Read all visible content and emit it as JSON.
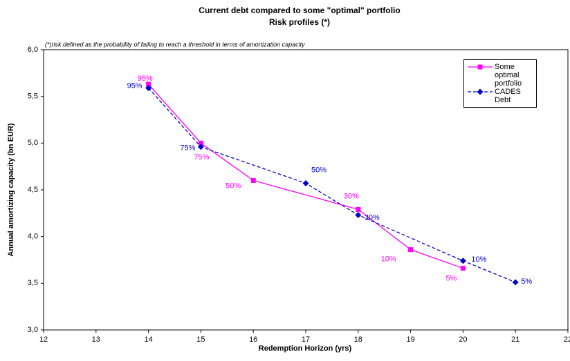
{
  "chart_data": {
    "type": "line",
    "title": "Current debt compared to some \"optimal\" portfolio",
    "subtitle": "Risk profiles (*)",
    "annotation": "(*)risk defined as the probability of failing to reach a threshold in terms of amortization capacity",
    "x_label": "Redemption Horizon (yrs)",
    "y_label": "Annual amortizing capacity (bn EUR)",
    "xlim": [
      12,
      22
    ],
    "xticks": [
      12,
      13,
      14,
      15,
      16,
      17,
      18,
      19,
      20,
      21,
      22
    ],
    "ylim": [
      3,
      6
    ],
    "yticks": [
      {
        "value": 3,
        "label": "3,0"
      },
      {
        "value": 3.5,
        "label": "3,5"
      },
      {
        "value": 4,
        "label": "4,0"
      },
      {
        "value": 4.5,
        "label": "4,5"
      },
      {
        "value": 5,
        "label": "5,0"
      },
      {
        "value": 5.5,
        "label": "5,5"
      },
      {
        "value": 6,
        "label": "6,0"
      }
    ],
    "grid": false,
    "legend": "top-right",
    "series": [
      {
        "name": "Some optimal portfolio",
        "color": "#ff00ff",
        "marker": "square",
        "dash": false,
        "x": [
          14,
          15,
          16,
          18,
          19,
          20
        ],
        "values": [
          5.63,
          5.0,
          4.6,
          4.29,
          3.86,
          3.66
        ],
        "point_labels": [
          "95%",
          "75%",
          "50%",
          "30%",
          "10%",
          "5%"
        ]
      },
      {
        "name": "CADES Debt",
        "color": "#0000cc",
        "marker": "diamond",
        "dash": true,
        "x": [
          14,
          15,
          17,
          18,
          20,
          21
        ],
        "values": [
          5.59,
          4.96,
          4.57,
          4.23,
          3.74,
          3.51
        ],
        "point_labels": [
          "95%",
          "75%",
          "50%",
          "30%",
          "10%",
          "5%"
        ]
      }
    ]
  }
}
